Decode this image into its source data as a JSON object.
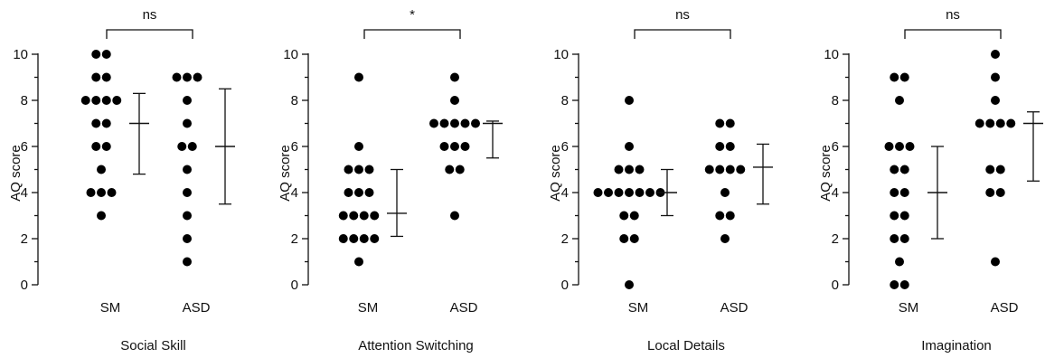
{
  "chart_data": [
    {
      "type": "scatter",
      "title": "Social Skill",
      "ylabel": "AQ score",
      "ylim": [
        0,
        10
      ],
      "yticks": [
        0,
        2,
        4,
        6,
        8,
        10
      ],
      "categories": [
        "SM",
        "ASD"
      ],
      "significance": "ns",
      "series": [
        {
          "name": "SM",
          "values": [
            10,
            10,
            9,
            9,
            8,
            8,
            8,
            8,
            7,
            7,
            6,
            6,
            5,
            4,
            4,
            4,
            3
          ],
          "mean": 7.0,
          "sd_low": 4.8,
          "sd_high": 8.3
        },
        {
          "name": "ASD",
          "values": [
            9,
            9,
            9,
            8,
            7,
            6,
            6,
            5,
            4,
            3,
            2,
            1
          ],
          "mean": 6.0,
          "sd_low": 3.5,
          "sd_high": 8.5
        }
      ]
    },
    {
      "type": "scatter",
      "title": "Attention  Switching",
      "ylabel": "AQ score",
      "ylim": [
        0,
        10
      ],
      "yticks": [
        0,
        2,
        4,
        6,
        8,
        10
      ],
      "categories": [
        "SM",
        "ASD"
      ],
      "significance": "*",
      "series": [
        {
          "name": "SM",
          "values": [
            9,
            6,
            5,
            5,
            5,
            4,
            4,
            4,
            3,
            3,
            3,
            3,
            2,
            2,
            2,
            2,
            1
          ],
          "mean": 3.1,
          "sd_low": 2.1,
          "sd_high": 5.0
        },
        {
          "name": "ASD",
          "values": [
            9,
            8,
            7,
            7,
            7,
            7,
            7,
            6,
            6,
            6,
            5,
            5,
            3
          ],
          "mean": 7.0,
          "sd_low": 5.5,
          "sd_high": 7.1
        }
      ]
    },
    {
      "type": "scatter",
      "title": "Local Details",
      "ylabel": "AQ score",
      "ylim": [
        0,
        10
      ],
      "yticks": [
        0,
        2,
        4,
        6,
        8,
        10
      ],
      "categories": [
        "SM",
        "ASD"
      ],
      "significance": "ns",
      "series": [
        {
          "name": "SM",
          "values": [
            8,
            6,
            5,
            5,
            5,
            4,
            4,
            4,
            4,
            4,
            4,
            4,
            3,
            3,
            2,
            2,
            0
          ],
          "mean": 4.0,
          "sd_low": 3.0,
          "sd_high": 5.0
        },
        {
          "name": "ASD",
          "values": [
            7,
            7,
            6,
            6,
            5,
            5,
            5,
            5,
            4,
            3,
            3,
            2
          ],
          "mean": 5.1,
          "sd_low": 3.5,
          "sd_high": 6.1
        }
      ]
    },
    {
      "type": "scatter",
      "title": "Imagination",
      "ylabel": "AQ score",
      "ylim": [
        0,
        10
      ],
      "yticks": [
        0,
        2,
        4,
        6,
        8,
        10
      ],
      "categories": [
        "SM",
        "ASD"
      ],
      "significance": "ns",
      "series": [
        {
          "name": "SM",
          "values": [
            9,
            9,
            8,
            6,
            6,
            6,
            5,
            5,
            4,
            4,
            3,
            3,
            2,
            2,
            1,
            0,
            0
          ],
          "mean": 4.0,
          "sd_low": 2.0,
          "sd_high": 6.0
        },
        {
          "name": "ASD",
          "values": [
            10,
            9,
            8,
            7,
            7,
            7,
            7,
            5,
            5,
            4,
            4,
            1
          ],
          "mean": 7.0,
          "sd_low": 4.5,
          "sd_high": 7.5
        }
      ]
    }
  ]
}
